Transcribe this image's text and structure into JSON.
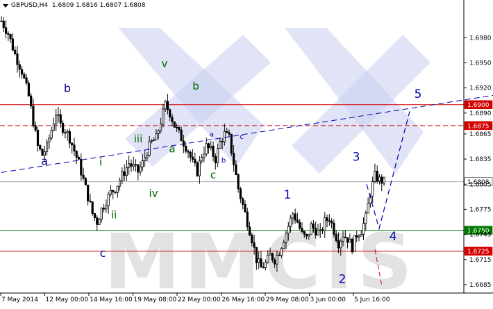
{
  "header": {
    "symbol": "GBPUSD,H4",
    "ohlc": "1.6809 1.6816 1.6807 1.6808"
  },
  "watermark": "MMCIS",
  "colors": {
    "background": "#ffffff",
    "candle": "#000000",
    "axis": "#000000",
    "grid_price_line": "#a9a9a9",
    "red_level": "#d40000",
    "green_level": "#007a00",
    "wave_blue": "#0000b0",
    "wave_green": "#006400",
    "wave_navy": "#000080",
    "watermark": "#c8cdf0"
  },
  "chart_data": {
    "type": "candlestick",
    "ylim": [
      1.6675,
      1.7025
    ],
    "y_ticks": [
      "1.6980",
      "1.6950",
      "1.6920",
      "1.6890",
      "1.6865",
      "1.6835",
      "1.6805",
      "1.6775",
      "1.6745",
      "1.6715",
      "1.6685"
    ],
    "x_ticks": [
      "7 May 2014",
      "12 May 00:00",
      "14 May 16:00",
      "19 May 08:00",
      "22 May 00:00",
      "26 May 16:00",
      "29 May 08:00",
      "3 Jun 00:00",
      "5 Jun 16:00"
    ],
    "levels": [
      {
        "price": 1.69,
        "label": "1.6900",
        "style": "solid",
        "color": "red"
      },
      {
        "price": 1.6875,
        "label": "1.6875",
        "style": "dashed",
        "color": "red"
      },
      {
        "price": 1.6808,
        "label": "1.6808",
        "style": "current",
        "color": "gray"
      },
      {
        "price": 1.675,
        "label": "1.6750",
        "style": "solid",
        "color": "green"
      },
      {
        "price": 1.6725,
        "label": "1.6725",
        "style": "solid",
        "color": "red"
      }
    ],
    "close_path": [
      [
        0,
        1.7
      ],
      [
        3,
        1.6985
      ],
      [
        6,
        1.696
      ],
      [
        9,
        1.694
      ],
      [
        12,
        1.691
      ],
      [
        14,
        1.688
      ],
      [
        16,
        1.685
      ],
      [
        18,
        1.684
      ],
      [
        20,
        1.685
      ],
      [
        22,
        1.687
      ],
      [
        24,
        1.689
      ],
      [
        26,
        1.6875
      ],
      [
        28,
        1.687
      ],
      [
        30,
        1.686
      ],
      [
        32,
        1.6845
      ],
      [
        34,
        1.683
      ],
      [
        36,
        1.681
      ],
      [
        38,
        1.679
      ],
      [
        40,
        1.677
      ],
      [
        42,
        1.676
      ],
      [
        44,
        1.6775
      ],
      [
        46,
        1.6785
      ],
      [
        48,
        1.6795
      ],
      [
        50,
        1.68
      ],
      [
        52,
        1.681
      ],
      [
        54,
        1.682
      ],
      [
        56,
        1.683
      ],
      [
        58,
        1.6825
      ],
      [
        60,
        1.682
      ],
      [
        62,
        1.683
      ],
      [
        64,
        1.6845
      ],
      [
        66,
        1.6855
      ],
      [
        68,
        1.686
      ],
      [
        70,
        1.688
      ],
      [
        72,
        1.69
      ],
      [
        74,
        1.689
      ],
      [
        76,
        1.6875
      ],
      [
        78,
        1.6865
      ],
      [
        80,
        1.6855
      ],
      [
        82,
        1.6845
      ],
      [
        84,
        1.683
      ],
      [
        86,
        1.682
      ],
      [
        88,
        1.684
      ],
      [
        90,
        1.685
      ],
      [
        92,
        1.6845
      ],
      [
        94,
        1.6835
      ],
      [
        96,
        1.6855
      ],
      [
        98,
        1.6865
      ],
      [
        100,
        1.686
      ],
      [
        102,
        1.683
      ],
      [
        104,
        1.68
      ],
      [
        106,
        1.678
      ],
      [
        108,
        1.676
      ],
      [
        110,
        1.674
      ],
      [
        112,
        1.6715
      ],
      [
        114,
        1.6705
      ],
      [
        116,
        1.671
      ],
      [
        118,
        1.672
      ],
      [
        120,
        1.6715
      ],
      [
        122,
        1.6725
      ],
      [
        124,
        1.674
      ],
      [
        126,
        1.6755
      ],
      [
        128,
        1.677
      ],
      [
        130,
        1.676
      ],
      [
        132,
        1.6745
      ],
      [
        134,
        1.674
      ],
      [
        136,
        1.6755
      ],
      [
        138,
        1.675
      ],
      [
        140,
        1.6745
      ],
      [
        142,
        1.676
      ],
      [
        144,
        1.6765
      ],
      [
        146,
        1.675
      ],
      [
        148,
        1.6735
      ],
      [
        150,
        1.6745
      ],
      [
        152,
        1.674
      ],
      [
        154,
        1.673
      ],
      [
        156,
        1.6745
      ],
      [
        158,
        1.675
      ],
      [
        160,
        1.6765
      ],
      [
        162,
        1.6795
      ],
      [
        164,
        1.6815
      ],
      [
        166,
        1.681
      ],
      [
        168,
        1.6808
      ]
    ],
    "wave_labels": [
      {
        "text": "a",
        "x": 64,
        "price": 1.6828,
        "color": "wave_navy",
        "size": 16
      },
      {
        "text": "b",
        "x": 97,
        "price": 1.6915,
        "color": "wave_navy",
        "size": 16
      },
      {
        "text": "c",
        "x": 148,
        "price": 1.6718,
        "color": "wave_navy",
        "size": 16
      },
      {
        "text": "i",
        "x": 145,
        "price": 1.6827,
        "color": "wave_green",
        "size": 15
      },
      {
        "text": "ii",
        "x": 164,
        "price": 1.6764,
        "color": "wave_green",
        "size": 15
      },
      {
        "text": "iii",
        "x": 199,
        "price": 1.6855,
        "color": "wave_green",
        "size": 15
      },
      {
        "text": "iv",
        "x": 221,
        "price": 1.679,
        "color": "wave_green",
        "size": 15
      },
      {
        "text": "v",
        "x": 237,
        "price": 1.6945,
        "color": "wave_green",
        "size": 15
      },
      {
        "text": "a",
        "x": 248,
        "price": 1.6843,
        "color": "wave_green",
        "size": 15
      },
      {
        "text": "b",
        "x": 282,
        "price": 1.6918,
        "color": "wave_green",
        "size": 15
      },
      {
        "text": "c",
        "x": 307,
        "price": 1.6812,
        "color": "wave_green",
        "size": 15
      },
      {
        "text": "a",
        "x": 305,
        "price": 1.6862,
        "color": "wave_blue",
        "size": 10
      },
      {
        "text": "b",
        "x": 322,
        "price": 1.6831,
        "color": "wave_blue",
        "size": 10
      },
      {
        "text": "c",
        "x": 348,
        "price": 1.6859,
        "color": "wave_blue",
        "size": 10
      },
      {
        "text": "1",
        "x": 414,
        "price": 1.6788,
        "color": "wave_blue",
        "size": 17
      },
      {
        "text": "2",
        "x": 493,
        "price": 1.6687,
        "color": "wave_blue",
        "size": 17
      },
      {
        "text": "3",
        "x": 513,
        "price": 1.6833,
        "color": "wave_blue",
        "size": 17
      },
      {
        "text": "4",
        "x": 566,
        "price": 1.6738,
        "color": "wave_blue",
        "size": 17
      },
      {
        "text": "5",
        "x": 602,
        "price": 1.6908,
        "color": "wave_blue",
        "size": 17
      }
    ],
    "projection": [
      [
        528,
        1.6805
      ],
      [
        546,
        1.6752
      ],
      [
        590,
        1.6892
      ]
    ],
    "projection_drop": [
      [
        540,
        1.6727
      ],
      [
        550,
        1.6683
      ]
    ],
    "trend_line": [
      [
        0,
        1.6819
      ],
      [
        300,
        1.6947
      ]
    ]
  }
}
